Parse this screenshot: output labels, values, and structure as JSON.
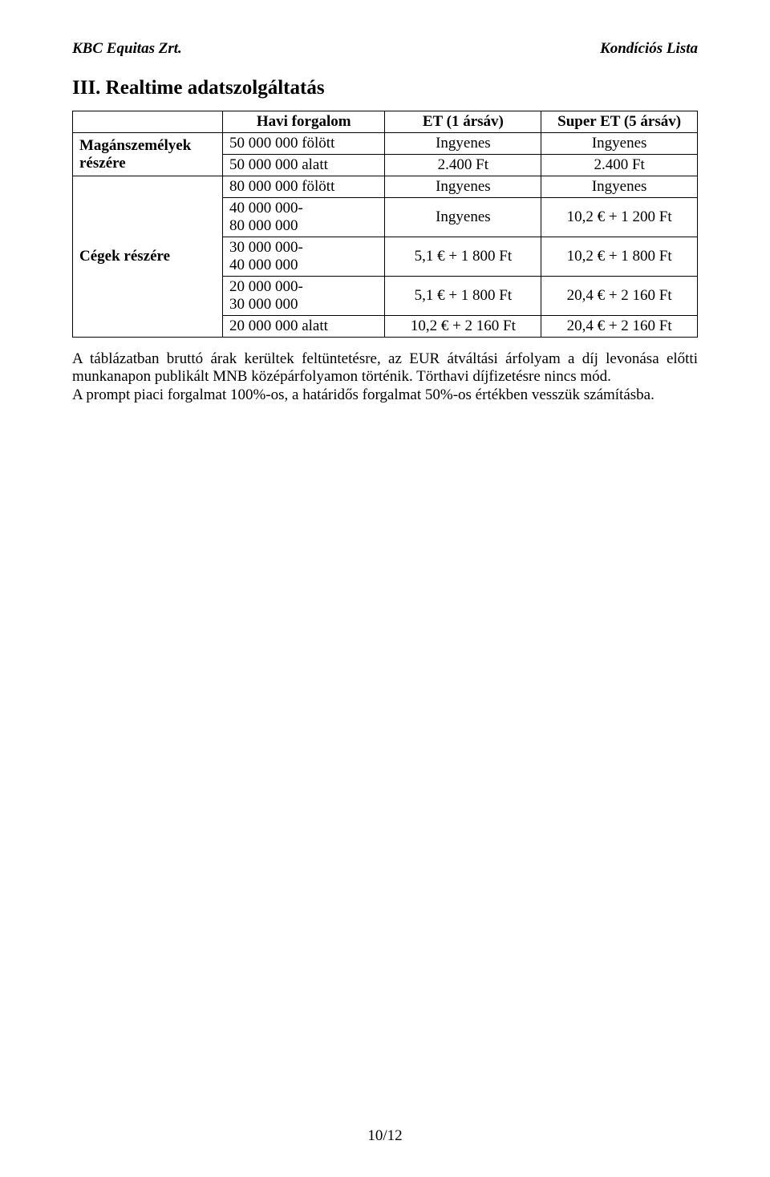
{
  "running_header": {
    "left": "KBC Equitas Zrt.",
    "right": "Kondíciós Lista"
  },
  "section_title": "III. Realtime adatszolgáltatás",
  "table": {
    "type": "table",
    "columns": {
      "empty": "",
      "traffic": "Havi forgalom",
      "et1": "ET (1 ársáv)",
      "et5": "Super ET (5 ársáv)"
    },
    "groups": [
      {
        "label_lines": [
          "Magánszemélyek",
          "részére"
        ],
        "rows": [
          {
            "traffic": "50 000 000 fölött",
            "et1": "Ingyenes",
            "et5": "Ingyenes"
          },
          {
            "traffic": "50 000 000 alatt",
            "et1": "2.400 Ft",
            "et5": "2.400 Ft"
          }
        ]
      },
      {
        "label_lines": [
          "Cégek részére"
        ],
        "rows": [
          {
            "traffic": "80 000 000 fölött",
            "et1": "Ingyenes",
            "et5": "Ingyenes"
          },
          {
            "traffic": "40 000 000-\n80 000 000",
            "et1": "Ingyenes",
            "et5": "10,2 € + 1 200 Ft"
          },
          {
            "traffic": "30 000 000-\n40 000 000",
            "et1": "5,1 € + 1 800 Ft",
            "et5": "10,2 € + 1 800 Ft"
          },
          {
            "traffic": "20 000 000-\n30 000 000",
            "et1": "5,1 € + 1 800 Ft",
            "et5": "20,4 € + 2 160 Ft"
          },
          {
            "traffic": "20 000 000 alatt",
            "et1": "10,2 € + 2 160 Ft",
            "et5": "20,4 € + 2 160 Ft"
          }
        ]
      }
    ]
  },
  "notes": {
    "p1": "A táblázatban bruttó árak kerültek feltüntetésre, az EUR átváltási árfolyam a díj levonása előtti munkanapon publikált MNB középárfolyamon történik. Törthavi díjfizetésre nincs mód.",
    "p2": "A prompt piaci forgalmat 100%-os, a határidős forgalmat 50%-os értékben vesszük számításba."
  },
  "page_number": "10/12",
  "colors": {
    "text": "#000000",
    "background": "#ffffff",
    "border": "#000000"
  },
  "fonts": {
    "body_family": "Times New Roman",
    "body_size_pt": 12,
    "title_size_pt": 16
  }
}
